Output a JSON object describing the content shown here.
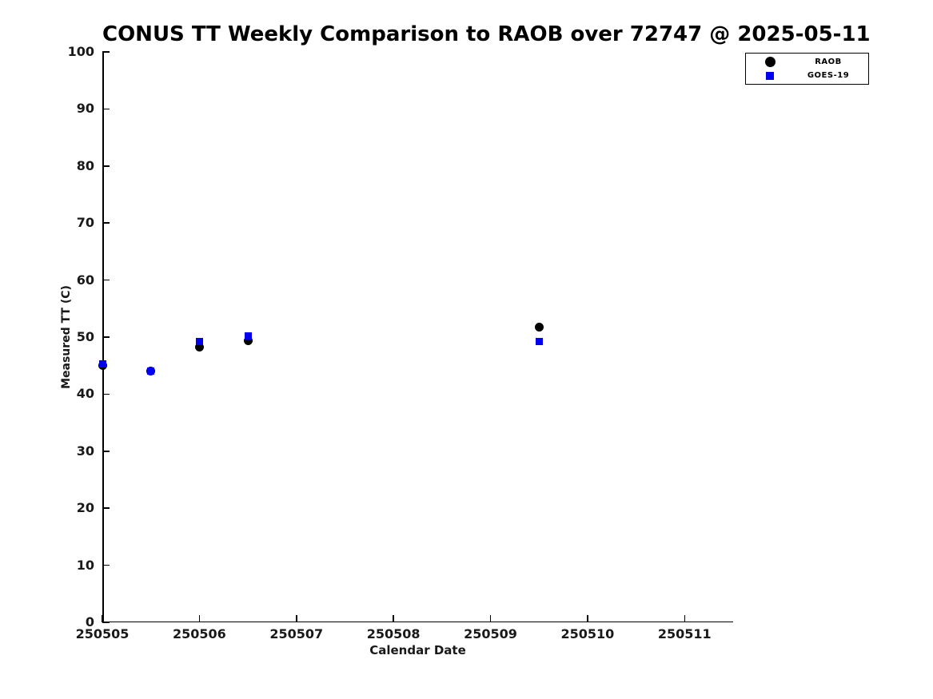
{
  "chart_data": {
    "type": "scatter",
    "title": "CONUS TT Weekly Comparison to RAOB over 72747 @ 2025-05-11",
    "xlabel": "Calendar Date",
    "ylabel": "Measured TT (C)",
    "xlim": [
      250505,
      250511.5
    ],
    "ylim": [
      0,
      100
    ],
    "x_ticks": [
      250505,
      250506,
      250507,
      250508,
      250509,
      250510,
      250511
    ],
    "y_ticks": [
      0,
      10,
      20,
      30,
      40,
      50,
      60,
      70,
      80,
      90,
      100
    ],
    "grid": false,
    "legend_position": "top-right",
    "x": [
      250505,
      250505.5,
      250506,
      250506.5,
      250509.5
    ],
    "series": [
      {
        "name": "RAOB",
        "marker": "circle",
        "color": "#000000",
        "values": [
          45.0,
          44.0,
          48.3,
          49.3,
          51.8
        ]
      },
      {
        "name": "GOES-19",
        "marker": "square",
        "color": "#0000ee",
        "values": [
          45.3,
          44.0,
          49.2,
          50.2,
          49.2
        ]
      }
    ]
  },
  "legend": {
    "items": [
      {
        "label": "RAOB",
        "marker": "circle",
        "color": "#000000"
      },
      {
        "label": "GOES-19",
        "marker": "square",
        "color": "#0000ee"
      }
    ]
  }
}
